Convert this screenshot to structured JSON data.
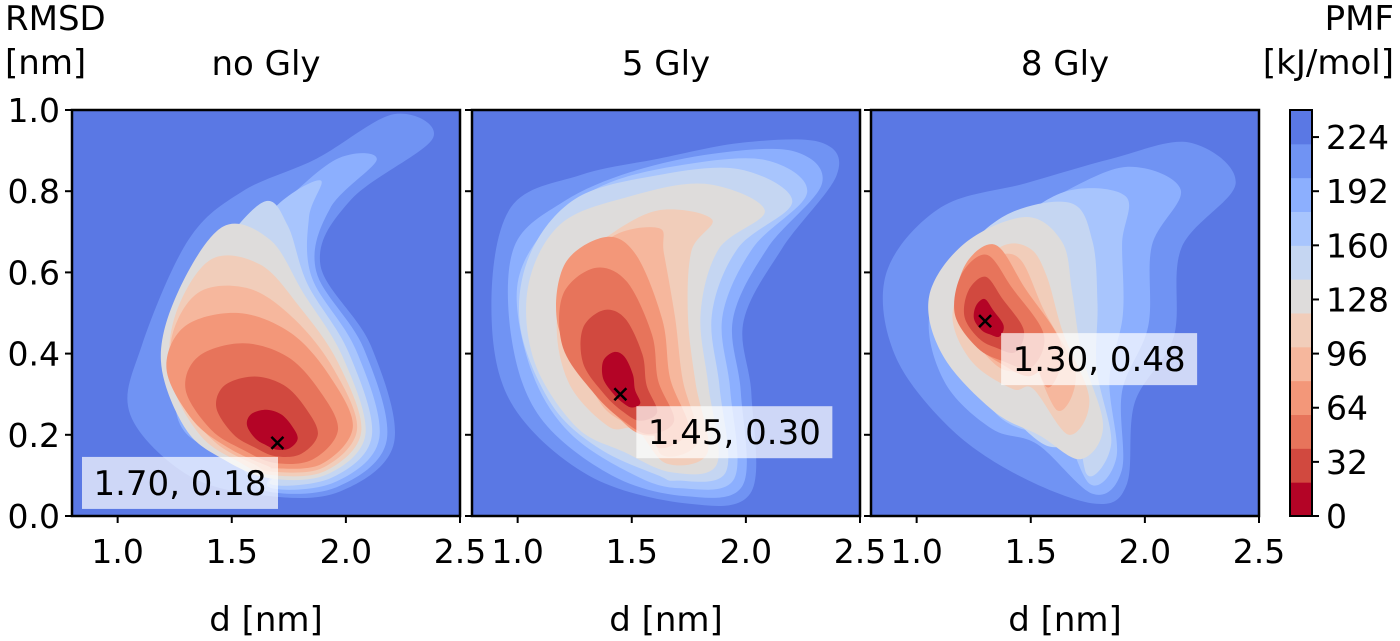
{
  "figure": {
    "y_axis_label_line1": "RMSD",
    "y_axis_label_line2": "[nm]",
    "colorbar_label_line1": "PMF",
    "colorbar_label_line2": "[kJ/mol]"
  },
  "chart_data": [
    {
      "type": "heatmap",
      "title": "no Gly",
      "xlabel": "d [nm]",
      "xlim": [
        0.8,
        2.5
      ],
      "ylim": [
        0.0,
        1.0
      ],
      "x_ticks": [
        "1.0",
        "1.5",
        "2.0",
        "2.5"
      ],
      "y_ticks": [
        "0.0",
        "0.2",
        "0.4",
        "0.6",
        "0.8",
        "1.0"
      ],
      "minimum": {
        "x": 1.7,
        "y": 0.18
      },
      "annotation": "1.70, 0.18"
    },
    {
      "type": "heatmap",
      "title": "5 Gly",
      "xlabel": "d [nm]",
      "xlim": [
        0.8,
        2.5
      ],
      "ylim": [
        0.0,
        1.0
      ],
      "x_ticks": [
        "1.0",
        "1.5",
        "2.0",
        "2.5"
      ],
      "minimum": {
        "x": 1.45,
        "y": 0.3
      },
      "annotation": "1.45, 0.30"
    },
    {
      "type": "heatmap",
      "title": "8 Gly",
      "xlabel": "d [nm]",
      "xlim": [
        0.8,
        2.5
      ],
      "ylim": [
        0.0,
        1.0
      ],
      "x_ticks": [
        "1.0",
        "1.5",
        "2.0",
        "2.5"
      ],
      "minimum": {
        "x": 1.3,
        "y": 0.48
      },
      "annotation": "1.30, 0.48"
    }
  ],
  "colorbar": {
    "min": 0,
    "max": 240,
    "ticks": [
      "0",
      "32",
      "64",
      "96",
      "128",
      "160",
      "192",
      "224"
    ],
    "colormap": "coolwarm_r",
    "colors": [
      "#b40426",
      "#d1493f",
      "#e7745b",
      "#f39779",
      "#f6b79d",
      "#f1cdba",
      "#dedcdb",
      "#c5d6f2",
      "#a8c5fd",
      "#8caffe",
      "#7093f3",
      "#5a78e4"
    ]
  }
}
